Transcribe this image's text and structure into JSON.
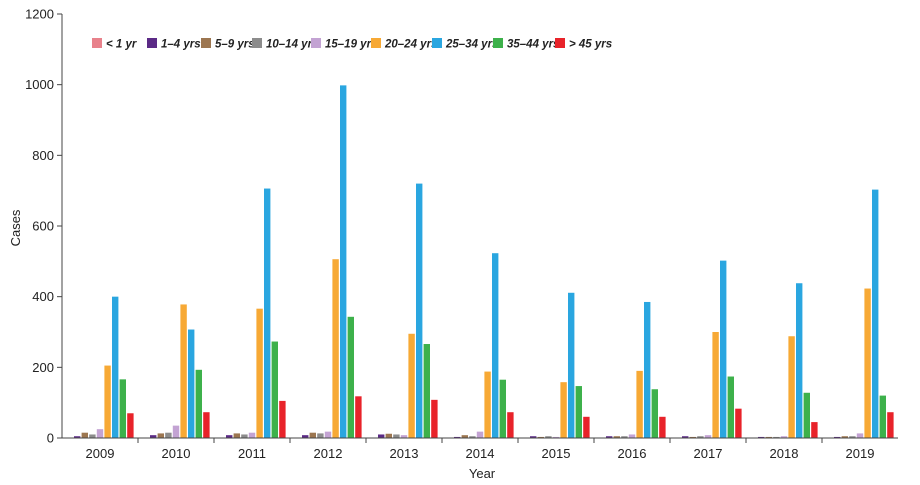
{
  "chart_data": {
    "type": "bar",
    "xlabel": "Year",
    "ylabel": "Cases",
    "ylim": [
      0,
      1200
    ],
    "yticks": [
      0,
      200,
      400,
      600,
      800,
      1000,
      1200
    ],
    "grid": false,
    "legend_position": "top-left",
    "categories": [
      "2009",
      "2010",
      "2011",
      "2012",
      "2013",
      "2014",
      "2015",
      "2016",
      "2017",
      "2018",
      "2019"
    ],
    "series": [
      {
        "name": "< 1 yr",
        "color": "#e8818b",
        "values": [
          0,
          0,
          0,
          0,
          0,
          0,
          0,
          0,
          0,
          0,
          0
        ]
      },
      {
        "name": "1–4 yrs",
        "color": "#5b2a86",
        "values": [
          5,
          8,
          8,
          8,
          10,
          3,
          5,
          5,
          5,
          3,
          3
        ]
      },
      {
        "name": "5–9 yrs",
        "color": "#9c7650",
        "values": [
          15,
          13,
          13,
          15,
          12,
          8,
          3,
          5,
          3,
          3,
          5
        ]
      },
      {
        "name": "10–14 yrs",
        "color": "#8c8c8c",
        "values": [
          10,
          15,
          10,
          13,
          10,
          5,
          5,
          5,
          5,
          3,
          5
        ]
      },
      {
        "name": "15–19 yrs",
        "color": "#c3a3d3",
        "values": [
          25,
          35,
          15,
          18,
          8,
          18,
          3,
          10,
          8,
          5,
          13
        ]
      },
      {
        "name": "20–24 yrs",
        "color": "#f7a935",
        "values": [
          205,
          378,
          366,
          506,
          295,
          188,
          158,
          190,
          300,
          288,
          423
        ]
      },
      {
        "name": "25–34 yrs",
        "color": "#2aa6e0",
        "values": [
          400,
          307,
          706,
          998,
          720,
          523,
          411,
          385,
          502,
          438,
          703
        ]
      },
      {
        "name": "35–44 yrs",
        "color": "#3db14b",
        "values": [
          166,
          193,
          273,
          343,
          266,
          165,
          147,
          138,
          174,
          128,
          120
        ]
      },
      {
        "name": "> 45 yrs",
        "color": "#e8232a",
        "values": [
          70,
          73,
          105,
          118,
          108,
          73,
          60,
          60,
          83,
          45,
          73
        ]
      }
    ]
  }
}
